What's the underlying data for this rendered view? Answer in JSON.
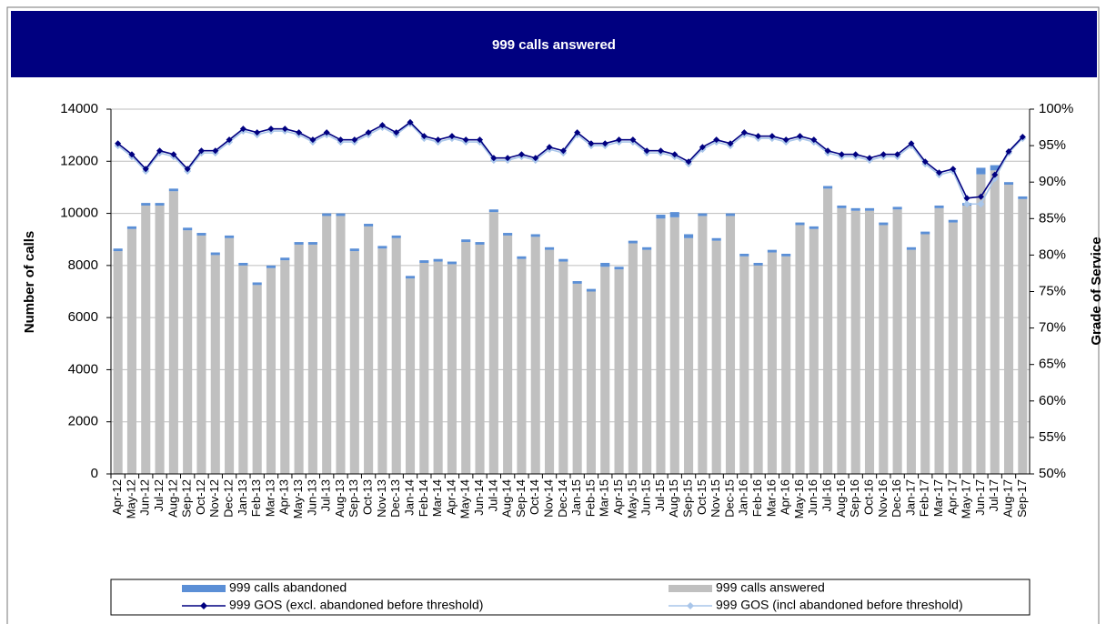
{
  "chart_data": {
    "type": "bar-line",
    "title": "999 calls answered",
    "y_label": "Number of calls",
    "y2_label": "Grade of Service",
    "categories": [
      "Apr-12",
      "May-12",
      "Jun-12",
      "Jul-12",
      "Aug-12",
      "Sep-12",
      "Oct-12",
      "Nov-12",
      "Dec-12",
      "Jan-13",
      "Feb-13",
      "Mar-13",
      "Apr-13",
      "May-13",
      "Jun-13",
      "Jul-13",
      "Aug-13",
      "Sep-13",
      "Oct-13",
      "Nov-13",
      "Dec-13",
      "Jan-14",
      "Feb-14",
      "Mar-14",
      "Apr-14",
      "May-14",
      "Jun-14",
      "Jul-14",
      "Aug-14",
      "Sep-14",
      "Oct-14",
      "Nov-14",
      "Dec-14",
      "Jan-15",
      "Feb-15",
      "Mar-15",
      "Apr-15",
      "May-15",
      "Jun-15",
      "Jul-15",
      "Aug-15",
      "Sep-15",
      "Oct-15",
      "Nov-15",
      "Dec-15",
      "Jan-16",
      "Feb-16",
      "Mar-16",
      "Apr-16",
      "May-16",
      "Jun-16",
      "Jul-16",
      "Aug-16",
      "Sep-16",
      "Oct-16",
      "Nov-16",
      "Dec-16",
      "Jan-17",
      "Feb-17",
      "Mar-17",
      "Apr-17",
      "May-17",
      "Jun-17",
      "Jul-17",
      "Aug-17",
      "Sep-17"
    ],
    "series": [
      {
        "name": "999 calls abandoned",
        "color": "#5b8fd6",
        "kind": "bar",
        "values": [
          100,
          100,
          100,
          100,
          100,
          100,
          100,
          100,
          100,
          100,
          100,
          100,
          100,
          100,
          100,
          100,
          100,
          100,
          100,
          100,
          100,
          100,
          100,
          100,
          100,
          100,
          100,
          100,
          100,
          100,
          100,
          100,
          100,
          100,
          100,
          150,
          100,
          100,
          100,
          150,
          200,
          150,
          100,
          100,
          100,
          100,
          100,
          100,
          100,
          100,
          100,
          100,
          100,
          100,
          100,
          100,
          100,
          100,
          100,
          100,
          100,
          100,
          250,
          200,
          100,
          100
        ]
      },
      {
        "name": "999 calls answered",
        "color": "#c0c0c0",
        "kind": "bar",
        "values": [
          8550,
          9400,
          10300,
          10300,
          10850,
          9350,
          9150,
          8400,
          9050,
          8000,
          7250,
          7900,
          8200,
          8800,
          8800,
          9900,
          9900,
          8550,
          9500,
          8650,
          9050,
          7500,
          8100,
          8150,
          8050,
          8900,
          8800,
          10050,
          9150,
          8250,
          9100,
          8600,
          8150,
          7300,
          7000,
          7950,
          7850,
          8850,
          8600,
          9800,
          9850,
          9050,
          9900,
          8950,
          9900,
          8350,
          8000,
          8500,
          8350,
          9550,
          9400,
          10950,
          10200,
          10100,
          10100,
          9550,
          10150,
          8600,
          9200,
          10200,
          9650,
          10300,
          11500,
          11650,
          11100,
          10550
        ]
      },
      {
        "name": "999 GOS (excl. abandoned before threshold)",
        "color": "#000080",
        "kind": "line",
        "axis": "y2",
        "values": [
          95.3,
          93.8,
          91.8,
          94.3,
          93.8,
          91.8,
          94.3,
          94.3,
          95.8,
          97.3,
          96.8,
          97.3,
          97.3,
          96.8,
          95.8,
          96.8,
          95.8,
          95.8,
          96.8,
          97.8,
          96.8,
          98.2,
          96.3,
          95.8,
          96.3,
          95.8,
          95.8,
          93.3,
          93.3,
          93.8,
          93.3,
          94.8,
          94.3,
          96.8,
          95.3,
          95.3,
          95.8,
          95.8,
          94.3,
          94.3,
          93.8,
          92.8,
          94.8,
          95.8,
          95.3,
          96.8,
          96.3,
          96.3,
          95.8,
          96.3,
          95.8,
          94.3,
          93.8,
          93.8,
          93.3,
          93.8,
          93.8,
          95.3,
          92.8,
          91.3,
          91.8,
          87.8,
          88,
          91,
          94.2,
          96.2
        ]
      },
      {
        "name": "999 GOS (incl abandoned before threshold)",
        "color": "#a9c6ea",
        "kind": "line",
        "axis": "y2",
        "values": [
          95,
          93.5,
          91.5,
          94,
          93.5,
          91.5,
          94,
          94,
          95.5,
          97,
          96.5,
          97,
          97,
          96.5,
          95.5,
          96.5,
          95.5,
          95.5,
          96.5,
          97.5,
          96.5,
          98,
          96,
          95.5,
          96,
          95.5,
          95.5,
          93,
          93,
          93.5,
          93,
          94.5,
          94,
          96.5,
          95,
          95,
          95.5,
          95.5,
          94,
          94,
          93.5,
          92.5,
          94.5,
          95.5,
          95,
          96.5,
          96,
          96,
          95.5,
          96,
          95.5,
          94,
          93.5,
          93.5,
          93,
          93.5,
          93.5,
          95,
          92.5,
          91,
          91.5,
          87,
          87,
          90.5,
          94,
          96
        ]
      }
    ],
    "ylim": [
      0,
      14000
    ],
    "yticks": [
      0,
      2000,
      4000,
      6000,
      8000,
      10000,
      12000,
      14000
    ],
    "y2lim": [
      50,
      100
    ],
    "y2ticks": [
      {
        "value": 50,
        "label": "50%"
      },
      {
        "value": 55,
        "label": "55%"
      },
      {
        "value": 60,
        "label": "60%"
      },
      {
        "value": 65,
        "label": "65%"
      },
      {
        "value": 70,
        "label": "70%"
      },
      {
        "value": 75,
        "label": "75%"
      },
      {
        "value": 80,
        "label": "80%"
      },
      {
        "value": 85,
        "label": "85%"
      },
      {
        "value": 90,
        "label": "90%"
      },
      {
        "value": 95,
        "label": "95%"
      },
      {
        "value": 100,
        "label": "100%"
      }
    ],
    "grid": true,
    "legend": "bottom"
  }
}
